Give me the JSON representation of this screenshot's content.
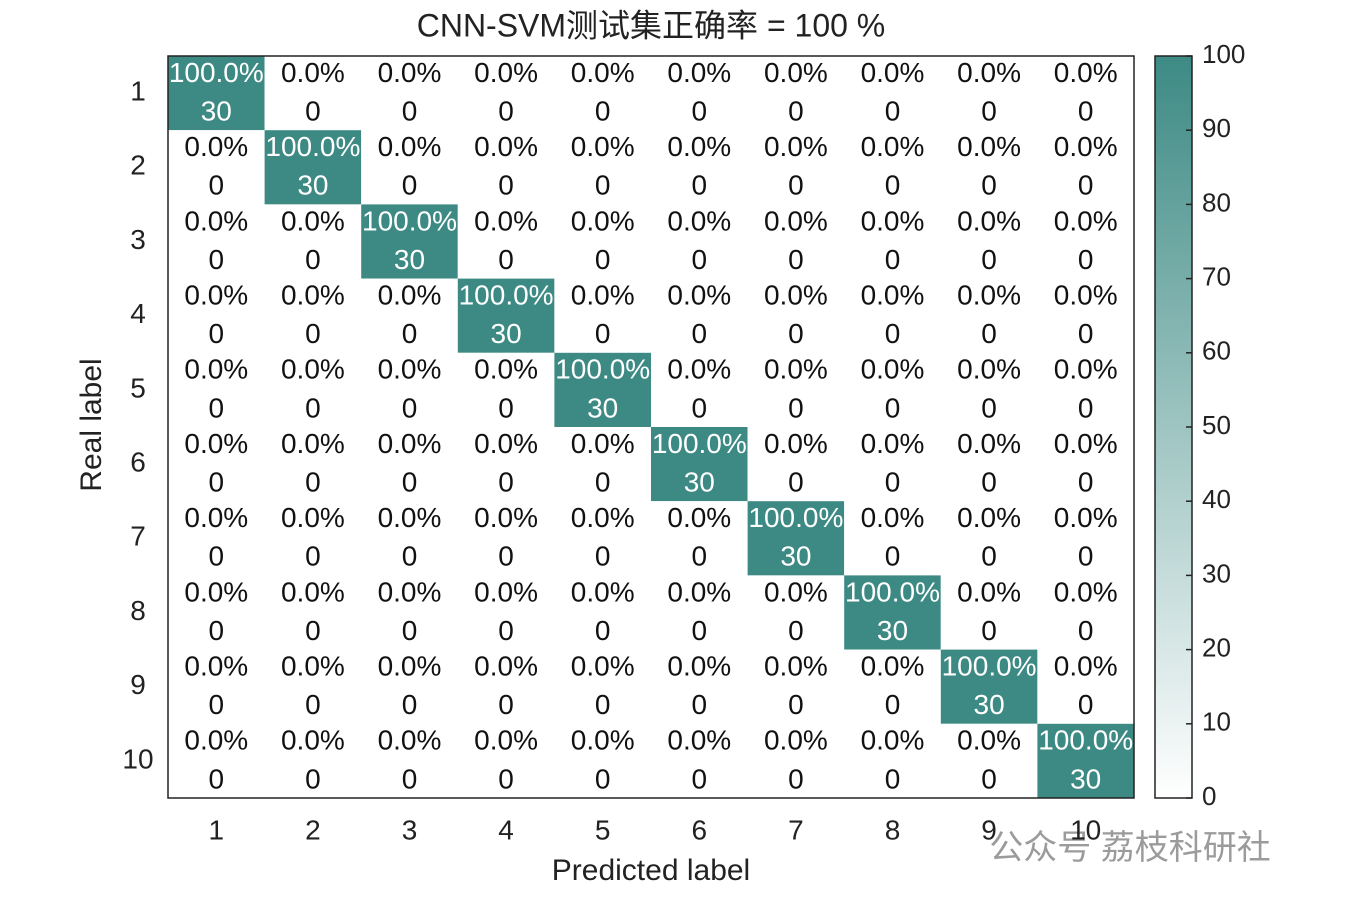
{
  "chart_data": {
    "type": "heatmap",
    "title": "CNN-SVM测试集正确率 = 100 %",
    "xlabel": "Predicted label",
    "ylabel": "Real label",
    "x_categories": [
      "1",
      "2",
      "3",
      "4",
      "5",
      "6",
      "7",
      "8",
      "9",
      "10"
    ],
    "y_categories": [
      "1",
      "2",
      "3",
      "4",
      "5",
      "6",
      "7",
      "8",
      "9",
      "10"
    ],
    "values": [
      [
        100,
        0,
        0,
        0,
        0,
        0,
        0,
        0,
        0,
        0
      ],
      [
        0,
        100,
        0,
        0,
        0,
        0,
        0,
        0,
        0,
        0
      ],
      [
        0,
        0,
        100,
        0,
        0,
        0,
        0,
        0,
        0,
        0
      ],
      [
        0,
        0,
        0,
        100,
        0,
        0,
        0,
        0,
        0,
        0
      ],
      [
        0,
        0,
        0,
        0,
        100,
        0,
        0,
        0,
        0,
        0
      ],
      [
        0,
        0,
        0,
        0,
        0,
        100,
        0,
        0,
        0,
        0
      ],
      [
        0,
        0,
        0,
        0,
        0,
        0,
        100,
        0,
        0,
        0
      ],
      [
        0,
        0,
        0,
        0,
        0,
        0,
        0,
        100,
        0,
        0
      ],
      [
        0,
        0,
        0,
        0,
        0,
        0,
        0,
        0,
        100,
        0
      ],
      [
        0,
        0,
        0,
        0,
        0,
        0,
        0,
        0,
        0,
        100
      ]
    ],
    "value_labels": [
      [
        "100.0%",
        "0.0%",
        "0.0%",
        "0.0%",
        "0.0%",
        "0.0%",
        "0.0%",
        "0.0%",
        "0.0%",
        "0.0%"
      ],
      [
        "0.0%",
        "100.0%",
        "0.0%",
        "0.0%",
        "0.0%",
        "0.0%",
        "0.0%",
        "0.0%",
        "0.0%",
        "0.0%"
      ],
      [
        "0.0%",
        "0.0%",
        "100.0%",
        "0.0%",
        "0.0%",
        "0.0%",
        "0.0%",
        "0.0%",
        "0.0%",
        "0.0%"
      ],
      [
        "0.0%",
        "0.0%",
        "0.0%",
        "100.0%",
        "0.0%",
        "0.0%",
        "0.0%",
        "0.0%",
        "0.0%",
        "0.0%"
      ],
      [
        "0.0%",
        "0.0%",
        "0.0%",
        "0.0%",
        "100.0%",
        "0.0%",
        "0.0%",
        "0.0%",
        "0.0%",
        "0.0%"
      ],
      [
        "0.0%",
        "0.0%",
        "0.0%",
        "0.0%",
        "0.0%",
        "100.0%",
        "0.0%",
        "0.0%",
        "0.0%",
        "0.0%"
      ],
      [
        "0.0%",
        "0.0%",
        "0.0%",
        "0.0%",
        "0.0%",
        "0.0%",
        "100.0%",
        "0.0%",
        "0.0%",
        "0.0%"
      ],
      [
        "0.0%",
        "0.0%",
        "0.0%",
        "0.0%",
        "0.0%",
        "0.0%",
        "0.0%",
        "100.0%",
        "0.0%",
        "0.0%"
      ],
      [
        "0.0%",
        "0.0%",
        "0.0%",
        "0.0%",
        "0.0%",
        "0.0%",
        "0.0%",
        "0.0%",
        "100.0%",
        "0.0%"
      ],
      [
        "0.0%",
        "0.0%",
        "0.0%",
        "0.0%",
        "0.0%",
        "0.0%",
        "0.0%",
        "0.0%",
        "0.0%",
        "100.0%"
      ]
    ],
    "counts": [
      [
        30,
        0,
        0,
        0,
        0,
        0,
        0,
        0,
        0,
        0
      ],
      [
        0,
        30,
        0,
        0,
        0,
        0,
        0,
        0,
        0,
        0
      ],
      [
        0,
        0,
        30,
        0,
        0,
        0,
        0,
        0,
        0,
        0
      ],
      [
        0,
        0,
        0,
        30,
        0,
        0,
        0,
        0,
        0,
        0
      ],
      [
        0,
        0,
        0,
        0,
        30,
        0,
        0,
        0,
        0,
        0
      ],
      [
        0,
        0,
        0,
        0,
        0,
        30,
        0,
        0,
        0,
        0
      ],
      [
        0,
        0,
        0,
        0,
        0,
        0,
        30,
        0,
        0,
        0
      ],
      [
        0,
        0,
        0,
        0,
        0,
        0,
        0,
        30,
        0,
        0
      ],
      [
        0,
        0,
        0,
        0,
        0,
        0,
        0,
        0,
        30,
        0
      ],
      [
        0,
        0,
        0,
        0,
        0,
        0,
        0,
        0,
        0,
        30
      ]
    ],
    "colormap": [
      "#ffffff",
      "#3d8a84"
    ],
    "clim": [
      0,
      100
    ],
    "cticks": [
      0,
      10,
      20,
      30,
      40,
      50,
      60,
      70,
      80,
      90,
      100
    ],
    "watermark": "公众号 荔枝科研社"
  }
}
